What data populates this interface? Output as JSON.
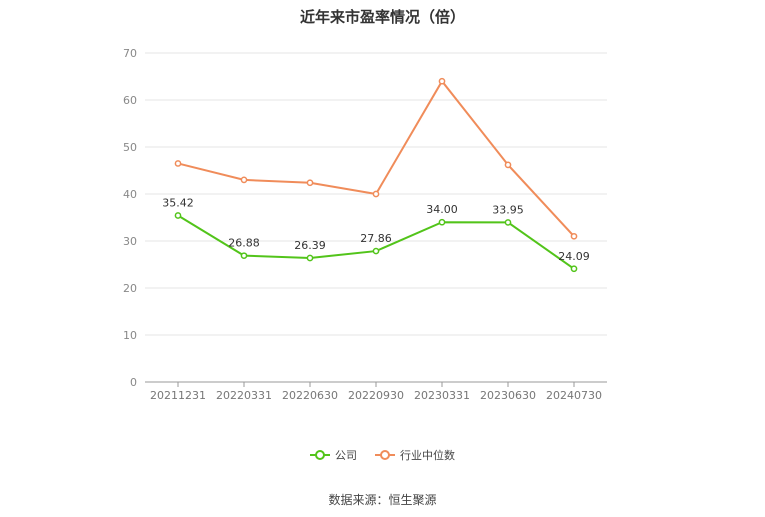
{
  "chart_data": {
    "type": "line",
    "title": "近年来市盈率情况（倍）",
    "categories": [
      "20211231",
      "20220331",
      "20220630",
      "20220930",
      "20230331",
      "20230630",
      "20240730"
    ],
    "series": [
      {
        "name": "公司",
        "color": "#52c41a",
        "values": [
          35.42,
          26.88,
          26.39,
          27.86,
          34.0,
          33.95,
          24.09
        ],
        "labels": [
          "35.42",
          "26.88",
          "26.39",
          "27.86",
          "34.00",
          "33.95",
          "24.09"
        ]
      },
      {
        "name": "行业中位数",
        "color": "#f08c5a",
        "values": [
          46.5,
          43.0,
          42.4,
          40.0,
          64.0,
          46.2,
          31.0
        ]
      }
    ],
    "ylim": [
      0,
      70
    ],
    "yticks": [
      "0",
      "10",
      "20",
      "30",
      "40",
      "50",
      "60",
      "70"
    ],
    "grid": true,
    "legend_position": "bottom",
    "source": "数据来源：恒生聚源"
  }
}
